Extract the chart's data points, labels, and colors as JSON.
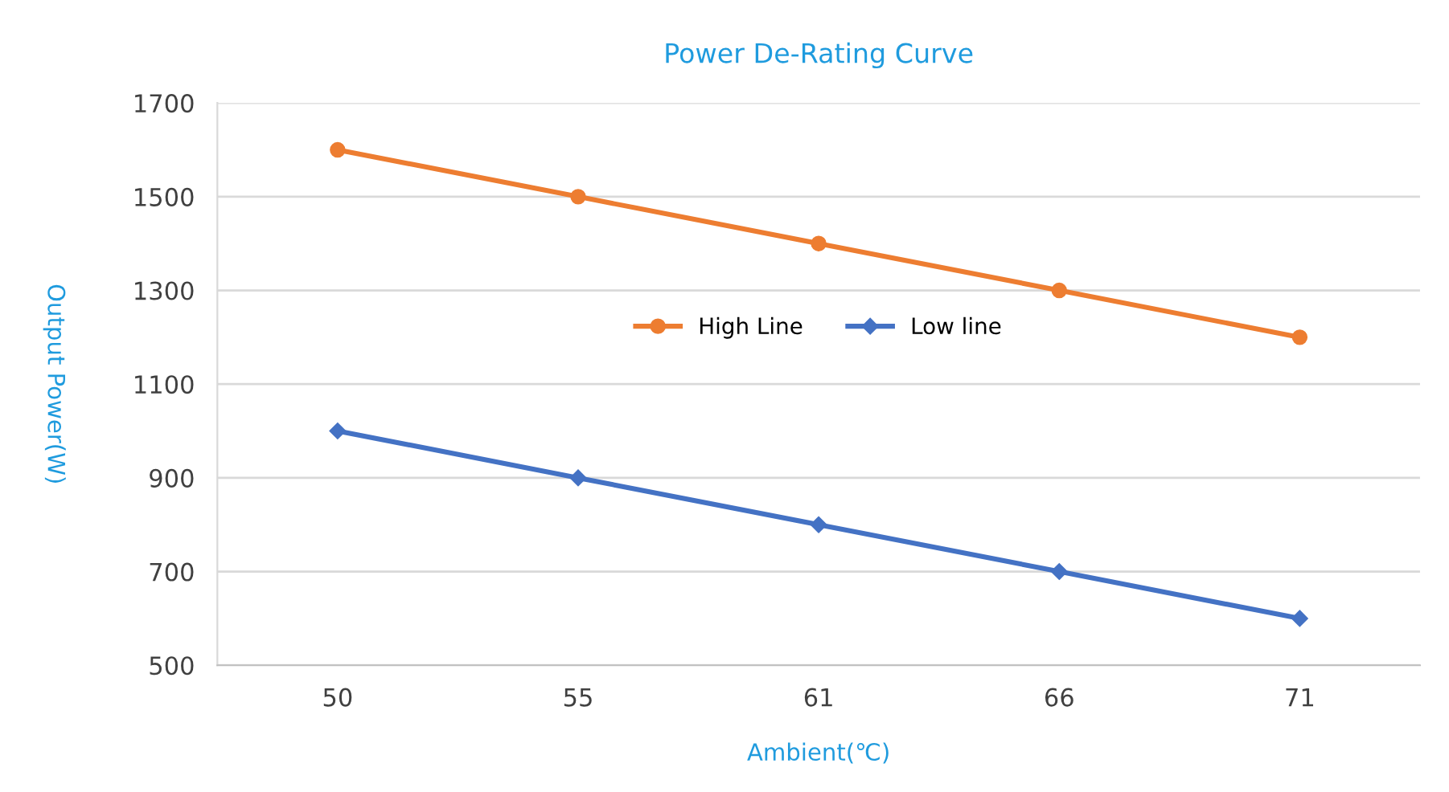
{
  "chart_data": {
    "type": "line",
    "title": "Power De-Rating Curve",
    "xlabel": "Ambient(℃)",
    "ylabel": "Output Power(W)",
    "categories": [
      "50",
      "55",
      "61",
      "66",
      "71"
    ],
    "series": [
      {
        "name": "High Line",
        "color": "#ed7d31",
        "marker": "circle",
        "values": [
          1600,
          1500,
          1400,
          1300,
          1200
        ]
      },
      {
        "name": "Low line",
        "color": "#4472c4",
        "marker": "diamond",
        "values": [
          1000,
          900,
          800,
          700,
          600
        ]
      }
    ],
    "ylim": [
      500,
      1700
    ],
    "yticks": [
      500,
      700,
      900,
      1100,
      1300,
      1500,
      1700
    ],
    "grid": "y",
    "legend": "center",
    "line_style": "solid"
  }
}
